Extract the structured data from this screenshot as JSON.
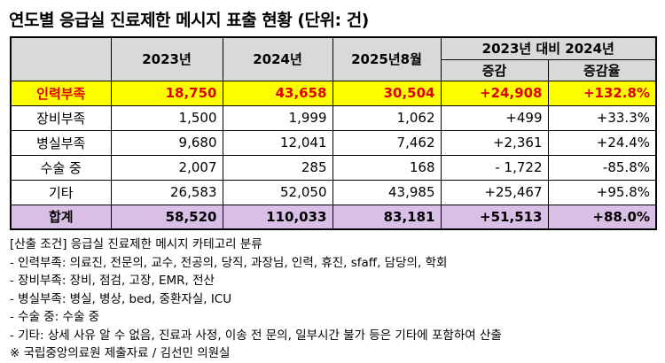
{
  "title": "연도별 응급실 진료제한 메시지 표출 현황 (단위: 건)",
  "header": {
    "y2023": "2023년",
    "y2024": "2024년",
    "y2025": "2025년8월",
    "compare": "2023년 대비 2024년",
    "change": "증감",
    "rate": "증감율"
  },
  "rows": [
    {
      "label": "인력부족",
      "v2023": "18,750",
      "v2024": "43,658",
      "v2025": "30,504",
      "change": "+24,908",
      "rate": "+132.8%"
    },
    {
      "label": "장비부족",
      "v2023": "1,500",
      "v2024": "1,999",
      "v2025": "1,062",
      "change": "+499",
      "rate": "+33.3%"
    },
    {
      "label": "병실부족",
      "v2023": "9,680",
      "v2024": "12,041",
      "v2025": "7,462",
      "change": "+2,361",
      "rate": "+24.4%"
    },
    {
      "label": "수술 중",
      "v2023": "2,007",
      "v2024": "285",
      "v2025": "168",
      "change": "- 1,722",
      "rate": "-85.8%"
    },
    {
      "label": "기타",
      "v2023": "26,583",
      "v2024": "52,050",
      "v2025": "43,985",
      "change": "+25,467",
      "rate": "+95.8%"
    }
  ],
  "total": {
    "label": "합계",
    "v2023": "58,520",
    "v2024": "110,033",
    "v2025": "83,181",
    "change": "+51,513",
    "rate": "+88.0%"
  },
  "notes": [
    "[산출 조건] 응급실 진료제한 메시지 카테고리 분류",
    " - 인력부족: 의료진, 전문의, 교수, 전공의, 당직, 과장님, 인력, 휴진, sfaff, 담당의, 학회",
    " - 장비부족: 장비, 점검, 고장, EMR, 전산",
    " - 병실부족: 병실, 병상, bed, 중환자실, ICU",
    " - 수술 중: 수술 중",
    " - 기타: 상세 사유 알 수 없음, 진료과 사정, 이송 전 문의, 일부시간 불가 등은 기타에 포함하여 산출",
    "※ 국립중앙의료원 제출자료 / 김선민 의원실"
  ]
}
